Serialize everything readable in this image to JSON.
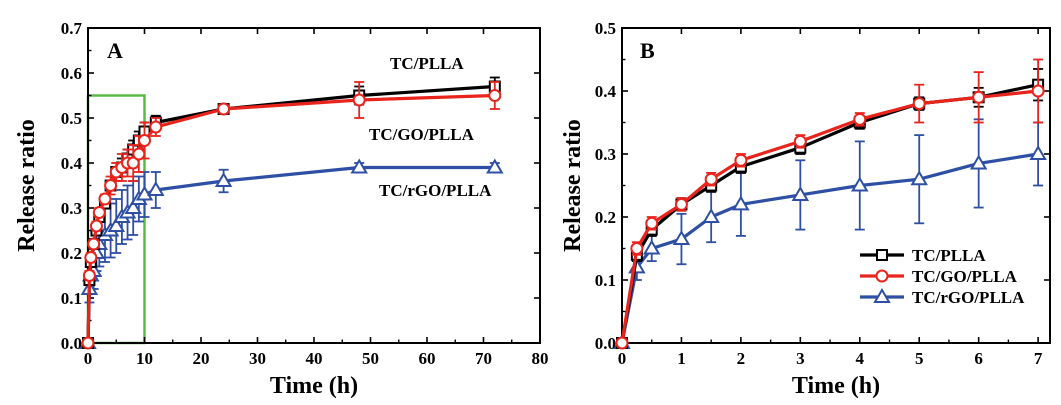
{
  "chart_data": [
    {
      "type": "line",
      "panel_label": "A",
      "xlabel": "Time (h)",
      "ylabel": "Release ratio",
      "xlim": [
        0,
        80
      ],
      "ylim": [
        0,
        0.7
      ],
      "xticks": [
        0,
        10,
        20,
        30,
        40,
        50,
        60,
        70,
        80
      ],
      "yticks": [
        0.0,
        0.1,
        0.2,
        0.3,
        0.4,
        0.5,
        0.6,
        0.7
      ],
      "x": [
        0,
        0.25,
        0.5,
        1,
        1.5,
        2,
        3,
        4,
        5,
        6,
        7,
        8,
        9,
        10,
        12,
        24,
        48,
        72
      ],
      "series": [
        {
          "name": "TC/PLLA",
          "color": "#000000",
          "marker": "square",
          "values": [
            0,
            0.14,
            0.18,
            0.22,
            0.25,
            0.28,
            0.31,
            0.35,
            0.38,
            0.39,
            0.41,
            0.43,
            0.45,
            0.47,
            0.49,
            0.52,
            0.55,
            0.57
          ],
          "errors": [
            0,
            0.01,
            0.01,
            0.01,
            0.01,
            0.01,
            0.01,
            0.01,
            0.01,
            0.02,
            0.02,
            0.02,
            0.02,
            0.02,
            0.015,
            0.01,
            0.02,
            0.02
          ]
        },
        {
          "name": "TC/GO/PLLA",
          "color": "#e8241c",
          "marker": "circle",
          "values": [
            0,
            0.15,
            0.19,
            0.22,
            0.26,
            0.29,
            0.32,
            0.35,
            0.38,
            0.39,
            0.4,
            0.4,
            0.42,
            0.45,
            0.48,
            0.52,
            0.54,
            0.55
          ],
          "errors": [
            0,
            0.01,
            0.01,
            0.01,
            0.01,
            0.01,
            0.01,
            0.02,
            0.02,
            0.03,
            0.03,
            0.04,
            0.04,
            0.04,
            0.02,
            0.01,
            0.04,
            0.03
          ]
        },
        {
          "name": "TC/rGO/PLLA",
          "color": "#2e4fa3",
          "marker": "triangle",
          "values": [
            0,
            0.12,
            0.15,
            0.16,
            0.2,
            0.22,
            0.24,
            0.25,
            0.26,
            0.28,
            0.29,
            0.3,
            0.32,
            0.33,
            0.34,
            0.36,
            0.39,
            0.39
          ],
          "errors": [
            0,
            0.03,
            0.03,
            0.04,
            0.04,
            0.05,
            0.06,
            0.06,
            0.06,
            0.06,
            0.06,
            0.06,
            0.05,
            0.05,
            0.04,
            0.025,
            0.01,
            0.01
          ]
        }
      ],
      "annotations": [
        "TC/PLLA",
        "TC/GO/PLLA",
        "TC/rGO/PLLA"
      ],
      "highlight_box": {
        "x_range": [
          0,
          10
        ],
        "y_range": [
          0,
          0.55
        ],
        "color": "#5db84a"
      }
    },
    {
      "type": "line",
      "panel_label": "B",
      "xlabel": "Time (h)",
      "ylabel": "Release ratio",
      "xlim": [
        0,
        7.2
      ],
      "ylim": [
        0,
        0.5
      ],
      "xticks": [
        0,
        1,
        2,
        3,
        4,
        5,
        6,
        7
      ],
      "yticks": [
        0.0,
        0.1,
        0.2,
        0.3,
        0.4,
        0.5
      ],
      "x": [
        0,
        0.25,
        0.5,
        1,
        1.5,
        2,
        3,
        4,
        5,
        6,
        7
      ],
      "legend": "center-right",
      "series": [
        {
          "name": "TC/PLLA",
          "color": "#000000",
          "marker": "square",
          "values": [
            0,
            0.14,
            0.18,
            0.22,
            0.25,
            0.28,
            0.31,
            0.35,
            0.38,
            0.39,
            0.41
          ],
          "errors": [
            0,
            0.01,
            0.01,
            0.01,
            0.01,
            0.01,
            0.01,
            0.01,
            0.01,
            0.015,
            0.025
          ]
        },
        {
          "name": "TC/GO/PLLA",
          "color": "#e8241c",
          "marker": "circle",
          "values": [
            0,
            0.15,
            0.19,
            0.22,
            0.26,
            0.29,
            0.32,
            0.355,
            0.38,
            0.39,
            0.4
          ],
          "errors": [
            0,
            0.01,
            0.01,
            0.01,
            0.01,
            0.01,
            0.01,
            0.01,
            0.03,
            0.04,
            0.05
          ]
        },
        {
          "name": "TC/rGO/PLLA",
          "color": "#2e4fa3",
          "marker": "triangle",
          "values": [
            0,
            0.12,
            0.15,
            0.165,
            0.2,
            0.22,
            0.235,
            0.25,
            0.26,
            0.285,
            0.3
          ],
          "errors": [
            0,
            0.02,
            0.02,
            0.04,
            0.04,
            0.05,
            0.055,
            0.07,
            0.07,
            0.07,
            0.05
          ]
        }
      ]
    }
  ]
}
